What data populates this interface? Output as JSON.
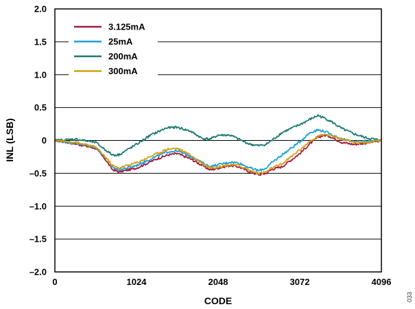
{
  "chart_data": {
    "type": "line",
    "title": "",
    "xlabel": "CODE",
    "ylabel": "INL (LSB)",
    "xlim": [
      0,
      4096
    ],
    "ylim": [
      -2.0,
      2.0
    ],
    "xticks": [
      0,
      1024,
      2048,
      3072,
      4096
    ],
    "xtick_labels": [
      "0",
      "1024",
      "2048",
      "3072",
      "4096"
    ],
    "yticks": [
      2.0,
      1.5,
      1.0,
      0.5,
      0,
      -0.5,
      -1.0,
      -1.5,
      -2.0
    ],
    "ytick_labels": [
      "2.0",
      "1.5",
      "1.0",
      "0.5",
      "0",
      "–0.5",
      "–1.0",
      "–1.5",
      "–2.0"
    ],
    "grid": "horizontal",
    "legend_position": "top-left",
    "figure_code": "033",
    "series": [
      {
        "name": "3.125mA",
        "color": "#a6193f",
        "x": [
          0,
          256,
          512,
          640,
          720,
          800,
          1024,
          1280,
          1420,
          1536,
          1700,
          1850,
          1950,
          2048,
          2200,
          2304,
          2450,
          2560,
          2650,
          2720,
          2850,
          3072,
          3200,
          3300,
          3380,
          3450,
          3600,
          3750,
          3900,
          4096
        ],
        "y": [
          0,
          -0.05,
          -0.12,
          -0.3,
          -0.44,
          -0.48,
          -0.42,
          -0.28,
          -0.22,
          -0.2,
          -0.28,
          -0.38,
          -0.45,
          -0.42,
          -0.38,
          -0.4,
          -0.48,
          -0.52,
          -0.5,
          -0.44,
          -0.4,
          -0.2,
          -0.05,
          0.05,
          0.08,
          0.06,
          -0.03,
          -0.06,
          -0.04,
          0
        ]
      },
      {
        "name": "25mA",
        "color": "#1a9fd5",
        "x": [
          0,
          256,
          512,
          640,
          720,
          800,
          1024,
          1280,
          1420,
          1536,
          1700,
          1850,
          1950,
          2048,
          2200,
          2304,
          2450,
          2560,
          2650,
          2720,
          2850,
          3072,
          3200,
          3300,
          3380,
          3450,
          3600,
          3750,
          3900,
          4096
        ],
        "y": [
          0,
          -0.04,
          -0.1,
          -0.27,
          -0.4,
          -0.45,
          -0.38,
          -0.24,
          -0.17,
          -0.16,
          -0.24,
          -0.34,
          -0.4,
          -0.37,
          -0.33,
          -0.34,
          -0.42,
          -0.46,
          -0.42,
          -0.34,
          -0.22,
          -0.02,
          0.12,
          0.16,
          0.14,
          0.1,
          0.02,
          -0.02,
          -0.01,
          0
        ]
      },
      {
        "name": "200mA",
        "color": "#1a7a6e",
        "x": [
          0,
          256,
          512,
          640,
          720,
          800,
          1024,
          1200,
          1400,
          1536,
          1700,
          1850,
          1950,
          2048,
          2200,
          2304,
          2450,
          2560,
          2650,
          2720,
          2850,
          3072,
          3200,
          3300,
          3380,
          3450,
          3600,
          3750,
          3900,
          4096
        ],
        "y": [
          0,
          0.02,
          -0.03,
          -0.15,
          -0.22,
          -0.22,
          -0.06,
          0.08,
          0.19,
          0.2,
          0.14,
          0.03,
          0.02,
          0.08,
          0.08,
          0.02,
          -0.06,
          -0.08,
          -0.06,
          0.0,
          0.12,
          0.24,
          0.32,
          0.38,
          0.34,
          0.3,
          0.18,
          0.1,
          0.04,
          0
        ]
      },
      {
        "name": "300mA",
        "color": "#d4a017",
        "x": [
          0,
          256,
          512,
          640,
          720,
          800,
          1024,
          1280,
          1420,
          1536,
          1700,
          1850,
          1950,
          2048,
          2200,
          2304,
          2450,
          2560,
          2650,
          2720,
          2850,
          3072,
          3200,
          3300,
          3380,
          3450,
          3600,
          3750,
          3900,
          4096
        ],
        "y": [
          0,
          -0.03,
          -0.1,
          -0.26,
          -0.38,
          -0.42,
          -0.34,
          -0.2,
          -0.13,
          -0.12,
          -0.22,
          -0.35,
          -0.42,
          -0.4,
          -0.37,
          -0.38,
          -0.46,
          -0.5,
          -0.48,
          -0.42,
          -0.36,
          -0.14,
          -0.02,
          0.06,
          0.1,
          0.08,
          0.02,
          -0.03,
          -0.03,
          0
        ]
      }
    ]
  }
}
